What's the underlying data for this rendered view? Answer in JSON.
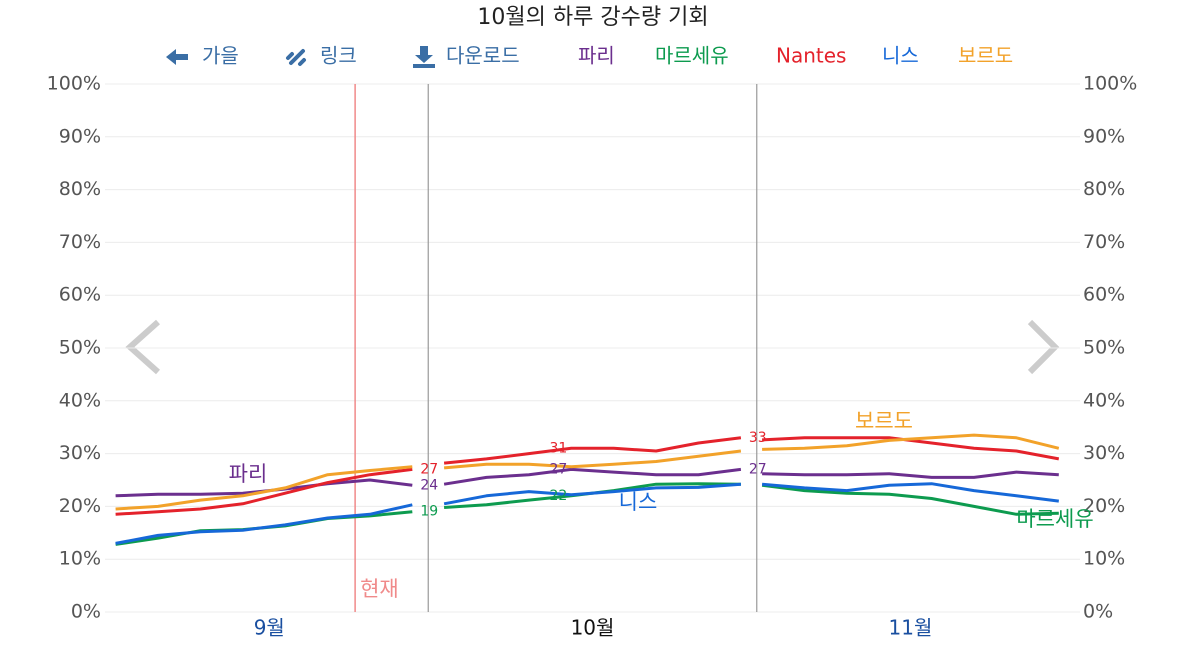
{
  "chart_data": {
    "type": "line",
    "title": "10월의 하루 강수량 기회",
    "toolbar": {
      "back": "가을",
      "link": "링크",
      "download": "다운로드"
    },
    "x": [
      0,
      4,
      8,
      12,
      16,
      20,
      24,
      28,
      30,
      31,
      35,
      39,
      43,
      47,
      51,
      55,
      59,
      60,
      61,
      65,
      69,
      73,
      77,
      81,
      85,
      89
    ],
    "xlim": [
      -1,
      91
    ],
    "xticks": [
      {
        "value": 14.5,
        "label": "9월"
      },
      {
        "value": 45,
        "label": "10월"
      },
      {
        "value": 75,
        "label": "11월"
      }
    ],
    "month_boundaries": [
      29.5,
      60.5
    ],
    "now": {
      "x": 22.6,
      "label": "현재"
    },
    "ylim": [
      0,
      100
    ],
    "yticks": [
      {
        "value": 0,
        "label": "0%"
      },
      {
        "value": 10,
        "label": "10%"
      },
      {
        "value": 20,
        "label": "20%"
      },
      {
        "value": 30,
        "label": "30%"
      },
      {
        "value": 40,
        "label": "40%"
      },
      {
        "value": 50,
        "label": "50%"
      },
      {
        "value": 60,
        "label": "60%"
      },
      {
        "value": 70,
        "label": "70%"
      },
      {
        "value": 80,
        "label": "80%"
      },
      {
        "value": 90,
        "label": "90%"
      },
      {
        "value": 100,
        "label": "100%"
      }
    ],
    "grid": true,
    "series": [
      {
        "name": "파리",
        "color": "#6b2f8e",
        "values": [
          22,
          22.3,
          22.3,
          22.5,
          23.3,
          24.3,
          25,
          24,
          null,
          24.2,
          25.5,
          26,
          27,
          26.5,
          26,
          26,
          27,
          null,
          26.2,
          26,
          26,
          26.2,
          25.5,
          25.5,
          26.5,
          26
        ]
      },
      {
        "name": "마르세유",
        "color": "#0d9b4f",
        "values": [
          12.8,
          14,
          15.4,
          15.6,
          16.3,
          17.7,
          18.2,
          19,
          null,
          19.8,
          20.3,
          21.2,
          22,
          23,
          24.2,
          24.3,
          24.2,
          null,
          24,
          23,
          22.5,
          22.3,
          21.5,
          20,
          18.5,
          18.7
        ]
      },
      {
        "name": "Nantes",
        "color": "#e4222b",
        "values": [
          18.5,
          19,
          19.5,
          20.5,
          22.5,
          24.5,
          26,
          27,
          null,
          28.2,
          29,
          30,
          31,
          31,
          30.5,
          32,
          33,
          null,
          32.6,
          33,
          33,
          33,
          32,
          31,
          30.5,
          29
        ]
      },
      {
        "name": "니스",
        "color": "#1668d8",
        "values": [
          13,
          14.5,
          15.2,
          15.5,
          16.5,
          17.8,
          18.5,
          20.3,
          null,
          20.5,
          22,
          22.8,
          22.2,
          22.8,
          23.5,
          23.6,
          24.2,
          null,
          24.2,
          23.5,
          23,
          24,
          24.3,
          23,
          22,
          21
        ]
      },
      {
        "name": "보르도",
        "color": "#f2a22a",
        "values": [
          19.5,
          20,
          21.2,
          22,
          23.5,
          26,
          26.8,
          27.5,
          null,
          27.3,
          28,
          28,
          27.5,
          28,
          28.5,
          29.5,
          30.5,
          null,
          30.8,
          31,
          31.5,
          32.5,
          33,
          33.5,
          33,
          31
        ]
      }
    ],
    "annotations": [
      {
        "series": 2,
        "x": 28,
        "value": 27
      },
      {
        "series": 0,
        "x": 28,
        "value": 24
      },
      {
        "series": 1,
        "x": 28,
        "value": 19
      },
      {
        "series": 2,
        "x": 43,
        "value": 31
      },
      {
        "series": 0,
        "x": 43,
        "value": 27
      },
      {
        "series": 1,
        "x": 43,
        "value": 22
      },
      {
        "series": 2,
        "x": 59,
        "value": 33
      },
      {
        "series": 0,
        "x": 59,
        "value": 27
      }
    ]
  }
}
